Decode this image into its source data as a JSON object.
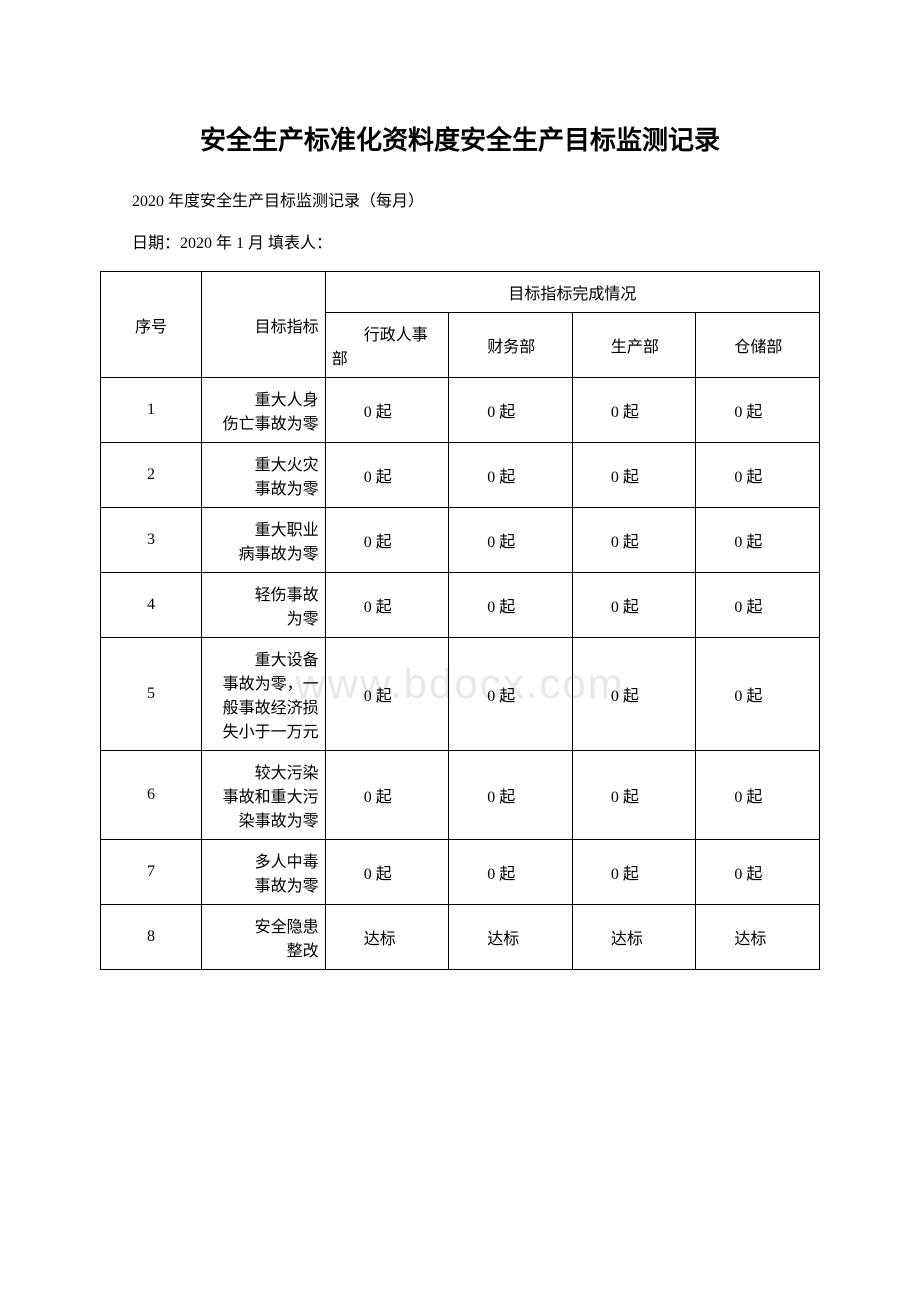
{
  "title": "安全生产标准化资料度安全生产目标监测记录",
  "subtitle": "2020 年度安全生产目标监测记录（每月）",
  "date_line": "日期：2020 年 1 月 填表人：",
  "watermark": "www.bdocx.com",
  "table": {
    "header": {
      "seq": "序号",
      "indicator": "目标指标",
      "completion": "目标指标完成情况",
      "departments": [
        "行政人事部",
        "财务部",
        "生产部",
        "仓储部"
      ]
    },
    "rows": [
      {
        "seq": "1",
        "indicator": "重大人身伤亡事故为零",
        "values": [
          "0 起",
          "0 起",
          "0 起",
          "0 起"
        ]
      },
      {
        "seq": "2",
        "indicator": "重大火灾事故为零",
        "values": [
          "0 起",
          "0 起",
          "0 起",
          "0 起"
        ]
      },
      {
        "seq": "3",
        "indicator": "重大职业病事故为零",
        "values": [
          "0 起",
          "0 起",
          "0 起",
          "0 起"
        ]
      },
      {
        "seq": "4",
        "indicator": "轻伤事故为零",
        "values": [
          "0 起",
          "0 起",
          "0 起",
          "0 起"
        ]
      },
      {
        "seq": "5",
        "indicator": "重大设备事故为零，一般事故经济损失小于一万元",
        "values": [
          "0 起",
          "0 起",
          "0 起",
          "0 起"
        ]
      },
      {
        "seq": "6",
        "indicator": "较大污染事故和重大污染事故为零",
        "values": [
          "0 起",
          "0 起",
          "0 起",
          "0 起"
        ]
      },
      {
        "seq": "7",
        "indicator": "多人中毒事故为零",
        "values": [
          "0 起",
          "0 起",
          "0 起",
          "0 起"
        ]
      },
      {
        "seq": "8",
        "indicator": "安全隐患整改",
        "values": [
          "达标",
          "达标",
          "达标",
          "达标"
        ]
      }
    ]
  },
  "colors": {
    "background": "#ffffff",
    "text": "#000000",
    "border": "#000000",
    "watermark": "#e8e8e8"
  }
}
